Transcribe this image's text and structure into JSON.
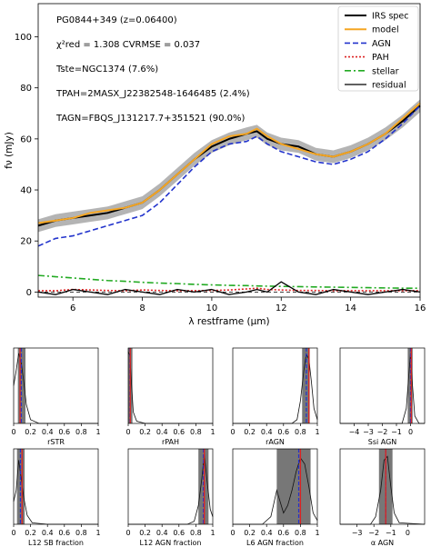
{
  "main": {
    "annotations": [
      "PG0844+349 (z=0.06400)",
      "χ²red = 1.308 CVRMSE = 0.037",
      "Tste=NGC1374 (7.6%)",
      "TPAH=2MASX_J22382548-1646485 (2.4%)",
      "TAGN=FBQS_J131217.7+351521 (90.0%)"
    ],
    "legend": [
      "IRS spec",
      "model",
      "AGN",
      "PAH",
      "stellar",
      "residual"
    ]
  },
  "colors": {
    "spec": "#000000",
    "model": "#f5a623",
    "agn": "#2233cc",
    "pah": "#dd2222",
    "stellar": "#22aa22",
    "band": "#777777",
    "truth": "#dd2222"
  },
  "chart_data": [
    {
      "type": "line",
      "title": "",
      "xlabel": "λ restframe (μm)",
      "ylabel": "fν (mJy)",
      "xlim": [
        5.0,
        16.0
      ],
      "ylim": [
        -2,
        113
      ],
      "xticks": [
        6,
        8,
        10,
        12,
        14,
        16
      ],
      "yticks": [
        0,
        20,
        40,
        60,
        80,
        100
      ],
      "x": [
        5.0,
        5.5,
        6.0,
        6.5,
        7.0,
        7.5,
        8.0,
        8.5,
        9.0,
        9.5,
        10.0,
        10.5,
        11.0,
        11.3,
        11.6,
        12.0,
        12.5,
        13.0,
        13.5,
        14.0,
        14.5,
        15.0,
        15.5,
        16.0
      ],
      "series": [
        {
          "name": "IRS spec",
          "values": [
            26,
            28,
            29,
            30,
            31,
            33,
            35,
            40,
            46,
            52,
            57,
            60,
            62,
            63,
            60,
            58,
            57,
            54,
            53,
            55,
            58,
            62,
            67,
            73
          ]
        },
        {
          "name": "model",
          "values": [
            27,
            28,
            29,
            31,
            32,
            33,
            35,
            40,
            46,
            52,
            58,
            61,
            62,
            64,
            61,
            58,
            56,
            54,
            53,
            55,
            58,
            62,
            68,
            74
          ]
        },
        {
          "name": "AGN",
          "values": [
            18,
            21,
            22,
            24,
            26,
            28,
            30,
            35,
            42,
            49,
            55,
            58,
            59,
            61,
            58,
            55,
            53,
            51,
            50,
            52,
            55,
            60,
            66,
            73
          ]
        },
        {
          "name": "PAH",
          "values": [
            0.5,
            0.5,
            1.0,
            0.8,
            0.6,
            0.5,
            0.8,
            0.6,
            0.5,
            0.5,
            0.6,
            0.8,
            1.2,
            1.5,
            1.0,
            0.8,
            0.6,
            0.6,
            0.5,
            0.5,
            0.5,
            0.5,
            0.5,
            0.5
          ]
        },
        {
          "name": "stellar",
          "values": [
            6.5,
            6.0,
            5.5,
            5.0,
            4.5,
            4.2,
            3.8,
            3.5,
            3.3,
            3.0,
            2.8,
            2.6,
            2.5,
            2.4,
            2.3,
            2.2,
            2.1,
            2.0,
            1.9,
            1.8,
            1.7,
            1.6,
            1.5,
            1.5
          ]
        },
        {
          "name": "residual",
          "values": [
            0,
            -1,
            1,
            0,
            -1,
            1,
            0,
            -1,
            1,
            0,
            1,
            -1,
            0,
            1,
            0,
            4,
            0,
            -1,
            1,
            0,
            -1,
            0,
            1,
            0
          ]
        }
      ]
    },
    {
      "type": "line",
      "xlabel": "rSTR",
      "xlim": [
        0.0,
        1.0
      ],
      "xticks": [
        0.0,
        0.2,
        0.4,
        0.6,
        0.8,
        1.0
      ],
      "band": [
        0.05,
        0.14
      ],
      "truth": 0.076,
      "median": 0.09,
      "curve": [
        [
          0.0,
          0.5
        ],
        [
          0.03,
          0.7
        ],
        [
          0.06,
          0.93
        ],
        [
          0.09,
          0.8
        ],
        [
          0.12,
          0.55
        ],
        [
          0.15,
          0.25
        ],
        [
          0.2,
          0.05
        ],
        [
          0.3,
          0.0
        ],
        [
          1.0,
          0.0
        ]
      ]
    },
    {
      "type": "line",
      "xlabel": "rPAH",
      "xlim": [
        0.0,
        1.0
      ],
      "xticks": [
        0.0,
        0.2,
        0.4,
        0.6,
        0.8,
        1.0
      ],
      "band": [
        0.0,
        0.05
      ],
      "truth": 0.024,
      "median": 0.02,
      "curve": [
        [
          0.0,
          0.95
        ],
        [
          0.02,
          0.9
        ],
        [
          0.04,
          0.5
        ],
        [
          0.06,
          0.15
        ],
        [
          0.1,
          0.03
        ],
        [
          0.2,
          0.0
        ],
        [
          1.0,
          0.0
        ]
      ]
    },
    {
      "type": "line",
      "xlabel": "rAGN",
      "xlim": [
        0.0,
        1.0
      ],
      "xticks": [
        0.0,
        0.2,
        0.4,
        0.6,
        0.8,
        1.0
      ],
      "band": [
        0.82,
        0.91
      ],
      "truth": 0.9,
      "median": 0.87,
      "curve": [
        [
          0.0,
          0.0
        ],
        [
          0.7,
          0.0
        ],
        [
          0.76,
          0.05
        ],
        [
          0.8,
          0.3
        ],
        [
          0.84,
          0.7
        ],
        [
          0.87,
          0.92
        ],
        [
          0.9,
          0.85
        ],
        [
          0.93,
          0.55
        ],
        [
          0.96,
          0.2
        ],
        [
          1.0,
          0.05
        ]
      ]
    },
    {
      "type": "line",
      "xlabel": "Ssi AGN",
      "xlim": [
        -5.0,
        1.0
      ],
      "xticks": [
        -4,
        -3,
        -2,
        -1,
        0
      ],
      "band": [
        -0.2,
        0.15
      ],
      "truth": 0.05,
      "median": 0.0,
      "curve": [
        [
          -5.0,
          0.0
        ],
        [
          -0.6,
          0.0
        ],
        [
          -0.3,
          0.2
        ],
        [
          -0.1,
          0.7
        ],
        [
          0.0,
          0.93
        ],
        [
          0.1,
          0.6
        ],
        [
          0.3,
          0.1
        ],
        [
          0.6,
          0.0
        ],
        [
          1.0,
          0.0
        ]
      ]
    },
    {
      "type": "line",
      "xlabel": "L12 SB fraction",
      "xlim": [
        0.0,
        1.0
      ],
      "xticks": [
        0.0,
        0.2,
        0.4,
        0.6,
        0.8,
        1.0
      ],
      "band": [
        0.04,
        0.13
      ],
      "truth": 0.1,
      "median": 0.08,
      "curve": [
        [
          0.0,
          0.3
        ],
        [
          0.03,
          0.45
        ],
        [
          0.06,
          0.85
        ],
        [
          0.09,
          0.6
        ],
        [
          0.12,
          0.35
        ],
        [
          0.16,
          0.12
        ],
        [
          0.22,
          0.02
        ],
        [
          0.4,
          0.0
        ],
        [
          1.0,
          0.0
        ]
      ]
    },
    {
      "type": "line",
      "xlabel": "L12 AGN fraction",
      "xlim": [
        0.0,
        1.0
      ],
      "xticks": [
        0.0,
        0.2,
        0.4,
        0.6,
        0.8,
        1.0
      ],
      "band": [
        0.83,
        0.95
      ],
      "truth": 0.9,
      "median": 0.89,
      "curve": [
        [
          0.0,
          0.0
        ],
        [
          0.7,
          0.0
        ],
        [
          0.78,
          0.04
        ],
        [
          0.83,
          0.25
        ],
        [
          0.87,
          0.6
        ],
        [
          0.9,
          0.93
        ],
        [
          0.93,
          0.6
        ],
        [
          0.97,
          0.2
        ],
        [
          1.0,
          0.1
        ]
      ]
    },
    {
      "type": "line",
      "xlabel": "L6 AGN fraction",
      "xlim": [
        0.0,
        1.0
      ],
      "xticks": [
        0.0,
        0.2,
        0.4,
        0.6,
        0.8,
        1.0
      ],
      "band": [
        0.52,
        0.92
      ],
      "truth": 0.8,
      "median": 0.78,
      "curve": [
        [
          0.0,
          0.0
        ],
        [
          0.35,
          0.0
        ],
        [
          0.45,
          0.1
        ],
        [
          0.52,
          0.45
        ],
        [
          0.56,
          0.3
        ],
        [
          0.6,
          0.15
        ],
        [
          0.65,
          0.25
        ],
        [
          0.7,
          0.45
        ],
        [
          0.75,
          0.7
        ],
        [
          0.8,
          0.88
        ],
        [
          0.85,
          0.8
        ],
        [
          0.9,
          0.5
        ],
        [
          0.95,
          0.15
        ],
        [
          1.0,
          0.05
        ]
      ]
    },
    {
      "type": "line",
      "xlabel": "α AGN",
      "xlim": [
        -4.0,
        1.0
      ],
      "xticks": [
        -3,
        -2,
        -1,
        0
      ],
      "band": [
        -1.7,
        -0.9
      ],
      "truth": -1.3,
      "median": -1.3,
      "curve": [
        [
          -4.0,
          0.0
        ],
        [
          -2.2,
          0.0
        ],
        [
          -1.9,
          0.1
        ],
        [
          -1.6,
          0.45
        ],
        [
          -1.4,
          0.85
        ],
        [
          -1.2,
          0.9
        ],
        [
          -1.0,
          0.5
        ],
        [
          -0.8,
          0.15
        ],
        [
          -0.5,
          0.02
        ],
        [
          1.0,
          0.0
        ]
      ]
    }
  ]
}
